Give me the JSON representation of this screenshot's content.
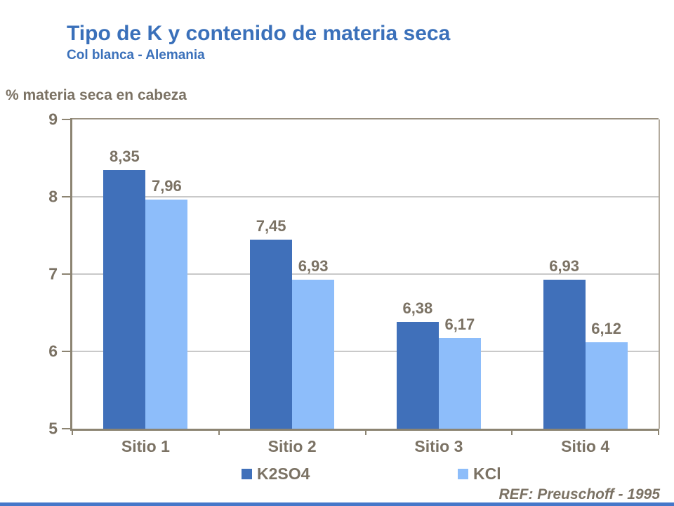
{
  "slide": {
    "title": "Tipo de K y contenido de materia seca",
    "subtitle": "Col blanca - Alemania",
    "footer_ref": "REF: Preuschoff - 1995"
  },
  "colors": {
    "title_blue": "#3a70ba",
    "series1": "#4070ba",
    "series2": "#8dbdfa",
    "axis": "#8c8472",
    "gridline": "#c9c9c9",
    "label_text": "#7b7264",
    "bottom_strip": "#4577c9"
  },
  "chart_data": {
    "type": "bar",
    "title": "Tipo de K y contenido de materia seca",
    "subtitle": "Col blanca - Alemania",
    "axis_title": "% materia seca en cabeza",
    "xlabel": "",
    "ylabel": "% materia seca en cabeza",
    "categories": [
      "Sitio 1",
      "Sitio 2",
      "Sitio 3",
      "Sitio 4"
    ],
    "series": [
      {
        "name": "K2SO4",
        "color_key": "series1",
        "values": [
          8.35,
          7.45,
          6.38,
          6.93
        ],
        "labels": [
          "8,35",
          "7,45",
          "6,38",
          "6,93"
        ]
      },
      {
        "name": "KCl",
        "color_key": "series2",
        "values": [
          7.96,
          6.93,
          6.17,
          6.12
        ],
        "labels": [
          "7,96",
          "6,93",
          "6,17",
          "6,12"
        ]
      }
    ],
    "y_axis": {
      "min": 5,
      "max": 9,
      "ticks": [
        9,
        8,
        7,
        6,
        5
      ]
    },
    "ylim": [
      5,
      9
    ],
    "grid": true,
    "legend_position": "bottom",
    "annotation": "REF: Preuschoff - 1995"
  }
}
